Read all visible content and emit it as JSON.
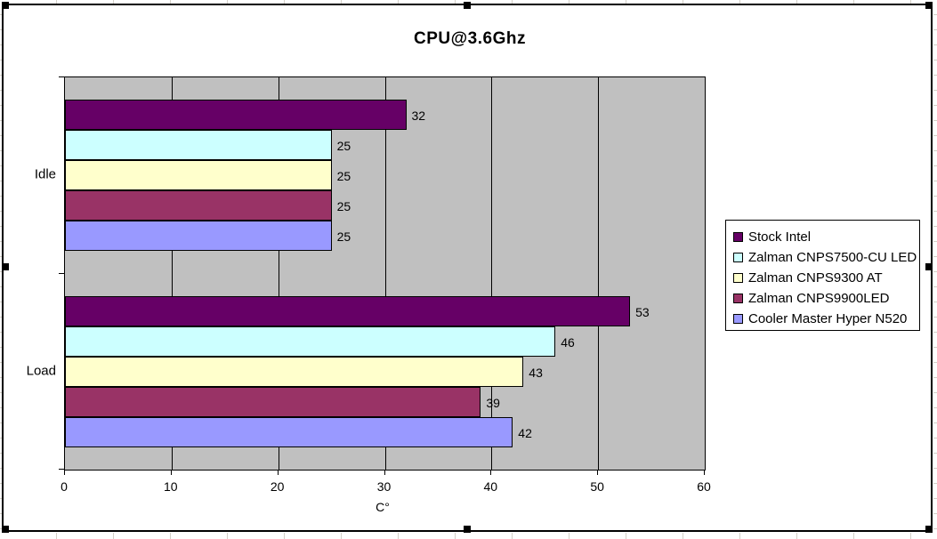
{
  "chart_title": "CPU@3.6Ghz",
  "chart_data": {
    "type": "bar",
    "orientation": "horizontal",
    "title": "CPU@3.6Ghz",
    "xlabel": "C°",
    "ylabel": "",
    "categories": [
      "Idle",
      "Load"
    ],
    "series": [
      {
        "name": "Stock Intel",
        "color": "#660066",
        "values": [
          32,
          53
        ]
      },
      {
        "name": "Zalman CNPS7500-CU LED",
        "color": "#CCFFFF",
        "values": [
          25,
          46
        ]
      },
      {
        "name": "Zalman CNPS9300 AT",
        "color": "#FFFFCC",
        "values": [
          25,
          43
        ]
      },
      {
        "name": "Zalman CNPS9900LED",
        "color": "#993366",
        "values": [
          25,
          39
        ]
      },
      {
        "name": "Cooler Master Hyper N520",
        "color": "#9999FF",
        "values": [
          25,
          42
        ]
      }
    ],
    "xlim": [
      0,
      60
    ],
    "xticks": [
      0,
      10,
      20,
      30,
      40,
      50,
      60
    ],
    "grid": true,
    "data_labels": true,
    "legend_position": "right",
    "colors": {
      "plot_background": "#C0C0C0",
      "chart_background": "#FFFFFF",
      "gridline": "#000000",
      "bar_border": "#000000",
      "text": "#000000"
    }
  }
}
